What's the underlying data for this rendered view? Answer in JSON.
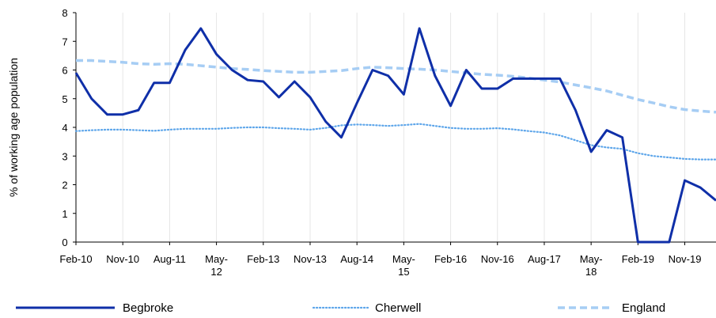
{
  "chart_data": {
    "type": "line",
    "ylabel": "% of working age population",
    "xlabel": "",
    "ylim": [
      0,
      8
    ],
    "yticks": [
      0,
      1,
      2,
      3,
      4,
      5,
      6,
      7,
      8
    ],
    "grid": "vertical",
    "legend_position": "bottom",
    "x_tick_labels": [
      {
        "index": 0,
        "lines": [
          "Feb-10"
        ]
      },
      {
        "index": 3,
        "lines": [
          "Nov-10"
        ]
      },
      {
        "index": 6,
        "lines": [
          "Aug-11"
        ]
      },
      {
        "index": 9,
        "lines": [
          "May-",
          "12"
        ]
      },
      {
        "index": 12,
        "lines": [
          "Feb-13"
        ]
      },
      {
        "index": 15,
        "lines": [
          "Nov-13"
        ]
      },
      {
        "index": 18,
        "lines": [
          "Aug-14"
        ]
      },
      {
        "index": 21,
        "lines": [
          "May-",
          "15"
        ]
      },
      {
        "index": 24,
        "lines": [
          "Feb-16"
        ]
      },
      {
        "index": 27,
        "lines": [
          "Nov-16"
        ]
      },
      {
        "index": 30,
        "lines": [
          "Aug-17"
        ]
      },
      {
        "index": 33,
        "lines": [
          "May-",
          "18"
        ]
      },
      {
        "index": 36,
        "lines": [
          "Feb-19"
        ]
      },
      {
        "index": 39,
        "lines": [
          "Nov-19"
        ]
      }
    ],
    "series": [
      {
        "name": "Begbroke",
        "color": "#0f2fa8",
        "style": "solid",
        "values": [
          5.9,
          5.0,
          4.45,
          4.45,
          4.6,
          5.55,
          5.55,
          6.7,
          7.45,
          6.55,
          6.0,
          5.65,
          5.6,
          5.05,
          5.6,
          5.05,
          4.2,
          3.65,
          4.85,
          6.0,
          5.8,
          5.15,
          7.45,
          5.8,
          4.75,
          6.0,
          5.35,
          5.35,
          5.7,
          5.7,
          5.7,
          5.7,
          4.6,
          3.15,
          3.9,
          3.65,
          0.0,
          0.0,
          0.0,
          2.15,
          1.9,
          1.45
        ]
      },
      {
        "name": "Cherwell",
        "color": "#5ea6ea",
        "style": "dotted",
        "values": [
          3.87,
          3.9,
          3.92,
          3.92,
          3.9,
          3.88,
          3.92,
          3.95,
          3.95,
          3.95,
          3.98,
          4.0,
          4.0,
          3.97,
          3.95,
          3.92,
          3.98,
          4.07,
          4.1,
          4.08,
          4.05,
          4.08,
          4.12,
          4.05,
          3.98,
          3.95,
          3.95,
          3.97,
          3.93,
          3.87,
          3.82,
          3.72,
          3.55,
          3.38,
          3.3,
          3.25,
          3.1,
          3.0,
          2.95,
          2.9,
          2.88,
          2.88
        ]
      },
      {
        "name": "England",
        "color": "#a6cdf4",
        "style": "dashed",
        "values": [
          6.33,
          6.33,
          6.3,
          6.27,
          6.22,
          6.2,
          6.22,
          6.2,
          6.15,
          6.1,
          6.05,
          6.02,
          5.98,
          5.95,
          5.92,
          5.92,
          5.95,
          5.98,
          6.05,
          6.1,
          6.08,
          6.05,
          6.03,
          6.0,
          5.95,
          5.9,
          5.85,
          5.82,
          5.78,
          5.72,
          5.65,
          5.58,
          5.48,
          5.38,
          5.27,
          5.12,
          4.97,
          4.85,
          4.72,
          4.62,
          4.57,
          4.53
        ]
      }
    ]
  }
}
